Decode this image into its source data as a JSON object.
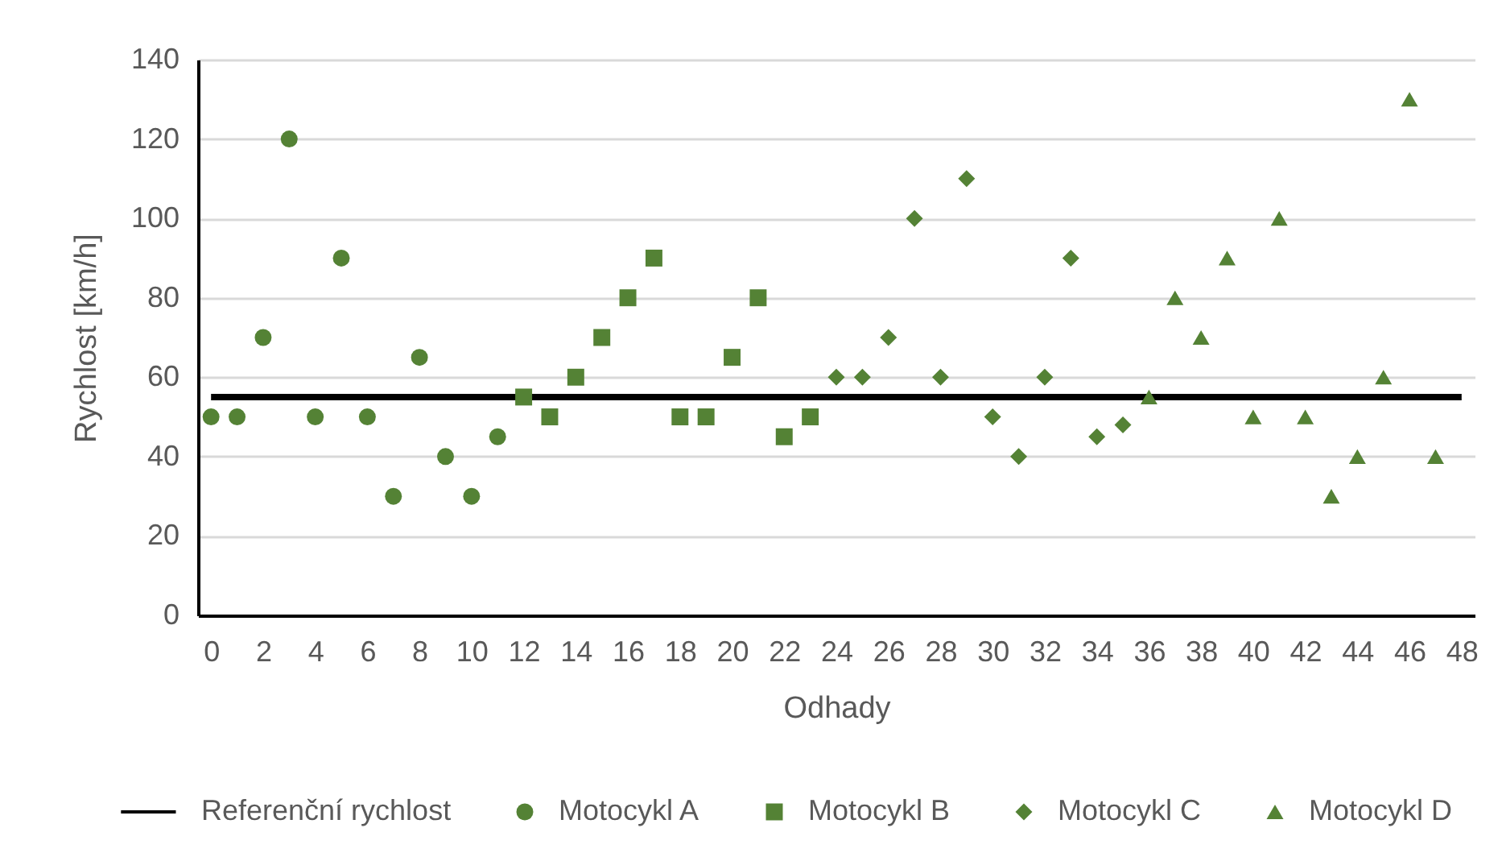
{
  "chart_data": {
    "type": "scatter",
    "xlabel": "Odhady",
    "ylabel": "Rychlost [km/h]",
    "xlim": [
      -0.5,
      48.5
    ],
    "xticks": [
      0,
      2,
      4,
      6,
      8,
      10,
      12,
      14,
      16,
      18,
      20,
      22,
      24,
      26,
      28,
      30,
      32,
      34,
      36,
      38,
      40,
      42,
      44,
      46,
      48
    ],
    "ylim": [
      0,
      140
    ],
    "yticks": [
      0,
      20,
      40,
      60,
      80,
      100,
      120,
      140
    ],
    "grid": "y",
    "legend": "bottom",
    "series": [
      {
        "name": "Referenční rychlost",
        "type": "line",
        "color": "#000000",
        "marker": "none",
        "line_style": "solid",
        "x": [
          0,
          48
        ],
        "values": [
          55,
          55
        ]
      },
      {
        "name": "Motocykl A",
        "color": "#548235",
        "marker": "circle",
        "x": [
          0,
          1,
          2,
          3,
          4,
          5,
          6,
          7,
          8,
          9,
          10,
          11
        ],
        "values": [
          50,
          50,
          70,
          120,
          50,
          90,
          50,
          30,
          65,
          40,
          30,
          45
        ]
      },
      {
        "name": "Motocykl B",
        "color": "#548235",
        "marker": "square",
        "x": [
          12,
          13,
          14,
          15,
          16,
          17,
          18,
          19,
          20,
          21,
          22,
          23
        ],
        "values": [
          55,
          50,
          60,
          70,
          80,
          90,
          50,
          50,
          65,
          80,
          45,
          50
        ]
      },
      {
        "name": "Motocykl C",
        "color": "#548235",
        "marker": "diamond",
        "x": [
          24,
          25,
          26,
          27,
          28,
          29,
          30,
          31,
          32,
          33,
          34,
          35
        ],
        "values": [
          60,
          60,
          70,
          100,
          60,
          110,
          50,
          40,
          60,
          90,
          45,
          48
        ]
      },
      {
        "name": "Motocykl D",
        "color": "#548235",
        "marker": "triangle",
        "x": [
          36,
          37,
          38,
          39,
          40,
          41,
          42,
          43,
          44,
          45,
          46,
          47
        ],
        "values": [
          55,
          80,
          70,
          90,
          50,
          100,
          50,
          30,
          40,
          60,
          130,
          40
        ]
      }
    ]
  }
}
